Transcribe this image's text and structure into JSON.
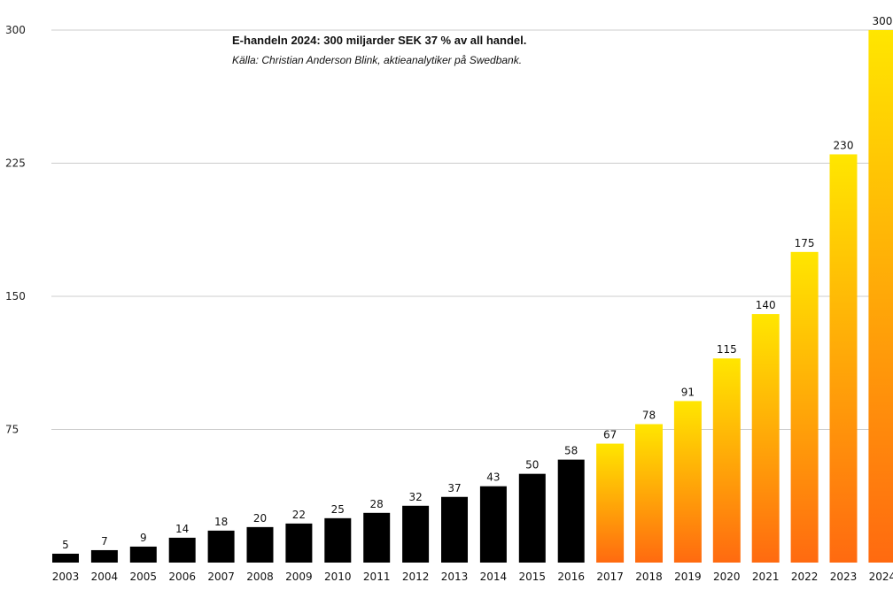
{
  "chart_data": {
    "type": "bar",
    "title": "E-handeln 2024: 300 miljarder SEK  37 % av all handel.",
    "subtitle": "Källa: Christian Anderson Blink, aktieanalytiker på Swedbank.",
    "xlabel": "",
    "ylabel": "",
    "ylim": [
      0,
      300
    ],
    "yticks": [
      75,
      150,
      225,
      300
    ],
    "grid": true,
    "categories": [
      "2003",
      "2004",
      "2005",
      "2006",
      "2007",
      "2008",
      "2009",
      "2010",
      "2011",
      "2012",
      "2013",
      "2014",
      "2015",
      "2016",
      "2017",
      "2018",
      "2019",
      "2020",
      "2021",
      "2022",
      "2023",
      "2024"
    ],
    "values": [
      5,
      7,
      9,
      14,
      18,
      20,
      22,
      25,
      28,
      32,
      37,
      43,
      50,
      58,
      67,
      78,
      91,
      115,
      140,
      175,
      230,
      300
    ],
    "colors": {
      "historical": "#000000",
      "forecast_top": "#ffe600",
      "forecast_bottom": "#ff6a10",
      "grid": "#cccccc"
    },
    "first_forecast_category": "2017"
  }
}
